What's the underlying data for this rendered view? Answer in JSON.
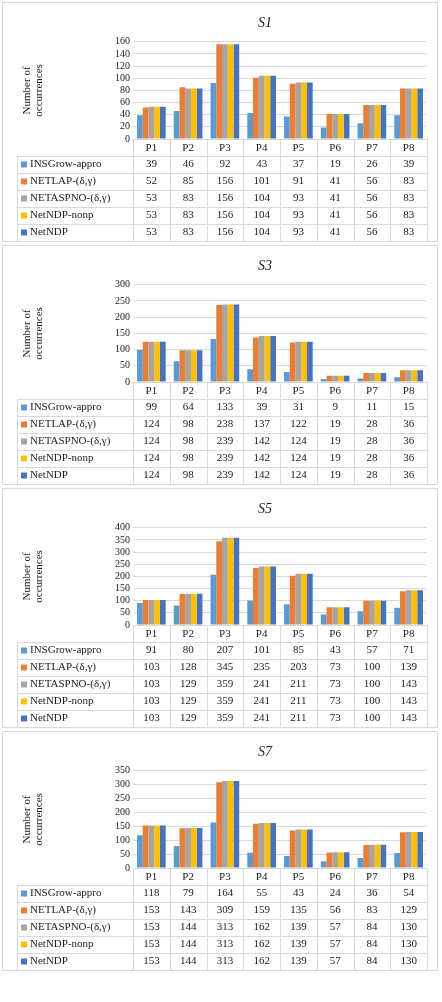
{
  "chart_data": [
    {
      "type": "bar",
      "title": "S1",
      "ylabel": "Number of occurrences",
      "categories": [
        "P1",
        "P2",
        "P3",
        "P4",
        "P5",
        "P6",
        "P7",
        "P8"
      ],
      "ylim": [
        0,
        160
      ],
      "yticks": [
        0,
        20,
        40,
        60,
        80,
        100,
        120,
        140,
        160
      ],
      "grid": "y",
      "legend": "bottom",
      "data_labels": true,
      "series": [
        {
          "name": "INSGrow-appro",
          "color": "#5b9bd5",
          "values": [
            39,
            46,
            92,
            43,
            37,
            19,
            26,
            39
          ]
        },
        {
          "name": "NETLAP-(δ,γ)",
          "color": "#ed7d31",
          "values": [
            52,
            85,
            156,
            101,
            91,
            41,
            56,
            83
          ]
        },
        {
          "name": "NETASPNO-(δ,γ)",
          "color": "#a5a5a5",
          "values": [
            53,
            83,
            156,
            104,
            93,
            41,
            56,
            83
          ]
        },
        {
          "name": "NetNDP-nonp",
          "color": "#ffc000",
          "values": [
            53,
            83,
            156,
            104,
            93,
            41,
            56,
            83
          ]
        },
        {
          "name": "NetNDP",
          "color": "#4472c4",
          "values": [
            53,
            83,
            156,
            104,
            93,
            41,
            56,
            83
          ]
        }
      ]
    },
    {
      "type": "bar",
      "title": "S3",
      "ylabel": "Number of occurrences",
      "categories": [
        "P1",
        "P2",
        "P3",
        "P4",
        "P5",
        "P6",
        "P7",
        "P8"
      ],
      "ylim": [
        0,
        300
      ],
      "yticks": [
        0,
        50,
        100,
        150,
        200,
        250,
        300
      ],
      "grid": "y",
      "legend": "bottom",
      "data_labels": true,
      "series": [
        {
          "name": "INSGrow-appro",
          "color": "#5b9bd5",
          "values": [
            99,
            64,
            133,
            39,
            31,
            9,
            11,
            15
          ]
        },
        {
          "name": "NETLAP-(δ,γ)",
          "color": "#ed7d31",
          "values": [
            124,
            98,
            238,
            137,
            122,
            19,
            28,
            36
          ]
        },
        {
          "name": "NETASPNO-(δ,γ)",
          "color": "#a5a5a5",
          "values": [
            124,
            98,
            239,
            142,
            124,
            19,
            28,
            36
          ]
        },
        {
          "name": "NetNDP-nonp",
          "color": "#ffc000",
          "values": [
            124,
            98,
            239,
            142,
            124,
            19,
            28,
            36
          ]
        },
        {
          "name": "NetNDP",
          "color": "#4472c4",
          "values": [
            124,
            98,
            239,
            142,
            124,
            19,
            28,
            36
          ]
        }
      ]
    },
    {
      "type": "bar",
      "title": "S5",
      "ylabel": "Number of occurrences",
      "categories": [
        "P1",
        "P2",
        "P3",
        "P4",
        "P5",
        "P6",
        "P7",
        "P8"
      ],
      "ylim": [
        0,
        400
      ],
      "yticks": [
        0,
        50,
        100,
        150,
        200,
        250,
        300,
        350,
        400
      ],
      "grid": "y",
      "legend": "bottom",
      "data_labels": true,
      "series": [
        {
          "name": "INSGrow-appro",
          "color": "#5b9bd5",
          "values": [
            91,
            80,
            207,
            101,
            85,
            43,
            57,
            71
          ]
        },
        {
          "name": "NETLAP-(δ,γ)",
          "color": "#ed7d31",
          "values": [
            103,
            128,
            345,
            235,
            203,
            73,
            100,
            139
          ]
        },
        {
          "name": "NETASPNO-(δ,γ)",
          "color": "#a5a5a5",
          "values": [
            103,
            129,
            359,
            241,
            211,
            73,
            100,
            143
          ]
        },
        {
          "name": "NetNDP-nonp",
          "color": "#ffc000",
          "values": [
            103,
            129,
            359,
            241,
            211,
            73,
            100,
            143
          ]
        },
        {
          "name": "NetNDP",
          "color": "#4472c4",
          "values": [
            103,
            129,
            359,
            241,
            211,
            73,
            100,
            143
          ]
        }
      ]
    },
    {
      "type": "bar",
      "title": "S7",
      "ylabel": "Number of occurrences",
      "categories": [
        "P1",
        "P2",
        "P3",
        "P4",
        "P5",
        "P6",
        "P7",
        "P8"
      ],
      "ylim": [
        0,
        350
      ],
      "yticks": [
        0,
        50,
        100,
        150,
        200,
        250,
        300,
        350
      ],
      "grid": "y",
      "legend": "bottom",
      "data_labels": true,
      "series": [
        {
          "name": "INSGrow-appro",
          "color": "#5b9bd5",
          "values": [
            118,
            79,
            164,
            55,
            43,
            24,
            36,
            54
          ]
        },
        {
          "name": "NETLAP-(δ,γ)",
          "color": "#ed7d31",
          "values": [
            153,
            143,
            309,
            159,
            135,
            56,
            83,
            129
          ]
        },
        {
          "name": "NETASPNO-(δ,γ)",
          "color": "#a5a5a5",
          "values": [
            153,
            144,
            313,
            162,
            139,
            57,
            84,
            130
          ]
        },
        {
          "name": "NetNDP-nonp",
          "color": "#ffc000",
          "values": [
            153,
            144,
            313,
            162,
            139,
            57,
            84,
            130
          ]
        },
        {
          "name": "NetNDP",
          "color": "#4472c4",
          "values": [
            153,
            144,
            313,
            162,
            139,
            57,
            84,
            130
          ]
        }
      ]
    }
  ]
}
